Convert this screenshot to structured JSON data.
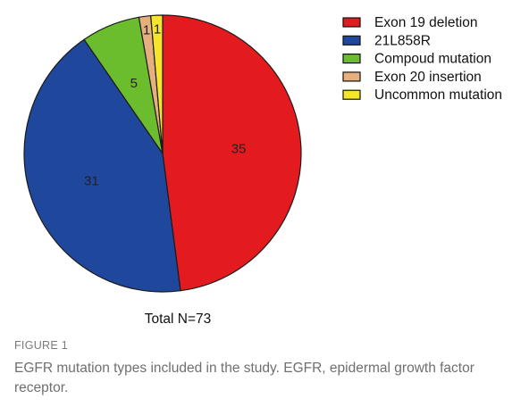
{
  "chart_data": {
    "type": "pie",
    "slices": [
      {
        "label": "Exon 19 deletion",
        "value": 35,
        "color": "#e31b1f"
      },
      {
        "label": "21L858R",
        "value": 31,
        "color": "#1f479c"
      },
      {
        "label": "Compoud mutation",
        "value": 5,
        "color": "#6bbd2e"
      },
      {
        "label": "Exon 20 insertion",
        "value": 1,
        "color": "#e6b07e"
      },
      {
        "label": "Uncommon mutation",
        "value": 1,
        "color": "#f5e62c"
      }
    ],
    "total_label": "Total N=73",
    "legend_position": "top-right"
  },
  "figure": {
    "label": "FIGURE 1",
    "caption": "EGFR mutation types included in the study. EGFR, epidermal growth factor receptor."
  }
}
